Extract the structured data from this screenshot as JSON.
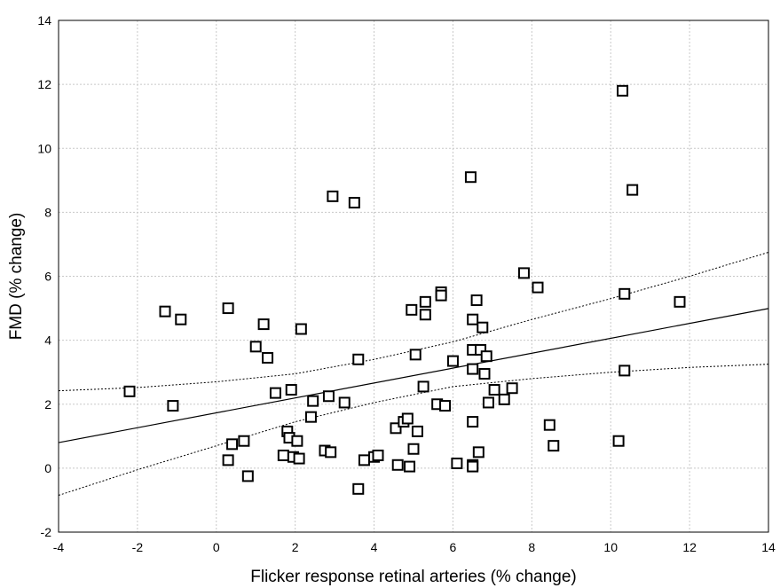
{
  "chart_data": {
    "type": "scatter",
    "title": "",
    "xlabel": "Flicker response retinal arteries (% change)",
    "ylabel": "FMD (% change)",
    "xlim": [
      -4,
      14
    ],
    "ylim": [
      -2,
      14
    ],
    "xticks": [
      "-4",
      "-2",
      "0",
      "2",
      "4",
      "6",
      "8",
      "10",
      "12",
      "14"
    ],
    "yticks": [
      "-2",
      "0",
      "2",
      "4",
      "6",
      "8",
      "10",
      "12",
      "14"
    ],
    "grid": true,
    "marker": "square",
    "points": [
      [
        -2.2,
        2.4
      ],
      [
        -1.3,
        4.9
      ],
      [
        -0.9,
        4.65
      ],
      [
        -1.1,
        1.95
      ],
      [
        0.3,
        5.0
      ],
      [
        0.3,
        0.25
      ],
      [
        0.4,
        0.75
      ],
      [
        0.7,
        0.85
      ],
      [
        0.8,
        -0.25
      ],
      [
        1.0,
        3.8
      ],
      [
        1.2,
        4.5
      ],
      [
        1.3,
        3.45
      ],
      [
        1.5,
        2.35
      ],
      [
        1.7,
        0.4
      ],
      [
        1.8,
        1.15
      ],
      [
        1.85,
        0.95
      ],
      [
        1.9,
        2.45
      ],
      [
        1.95,
        0.35
      ],
      [
        2.05,
        0.85
      ],
      [
        2.1,
        0.3
      ],
      [
        2.15,
        4.35
      ],
      [
        2.4,
        1.6
      ],
      [
        2.45,
        2.1
      ],
      [
        2.75,
        0.55
      ],
      [
        2.85,
        2.25
      ],
      [
        2.9,
        0.5
      ],
      [
        2.95,
        8.5
      ],
      [
        3.25,
        2.05
      ],
      [
        3.5,
        8.3
      ],
      [
        3.6,
        3.4
      ],
      [
        3.6,
        -0.65
      ],
      [
        3.75,
        0.25
      ],
      [
        4.0,
        0.35
      ],
      [
        4.1,
        0.4
      ],
      [
        4.55,
        1.25
      ],
      [
        4.6,
        0.1
      ],
      [
        4.75,
        1.45
      ],
      [
        4.85,
        1.55
      ],
      [
        4.9,
        0.05
      ],
      [
        4.95,
        4.95
      ],
      [
        5.0,
        0.6
      ],
      [
        5.05,
        3.55
      ],
      [
        5.1,
        1.15
      ],
      [
        5.25,
        2.55
      ],
      [
        5.3,
        5.2
      ],
      [
        5.3,
        4.8
      ],
      [
        5.6,
        2.0
      ],
      [
        5.7,
        5.5
      ],
      [
        5.7,
        5.4
      ],
      [
        5.8,
        1.95
      ],
      [
        6.0,
        3.35
      ],
      [
        6.1,
        0.15
      ],
      [
        6.45,
        9.1
      ],
      [
        6.5,
        3.7
      ],
      [
        6.5,
        3.1
      ],
      [
        6.5,
        1.45
      ],
      [
        6.5,
        0.1
      ],
      [
        6.5,
        0.05
      ],
      [
        6.5,
        4.65
      ],
      [
        6.6,
        5.25
      ],
      [
        6.65,
        0.5
      ],
      [
        6.7,
        3.7
      ],
      [
        6.75,
        4.4
      ],
      [
        6.8,
        2.95
      ],
      [
        6.85,
        3.5
      ],
      [
        6.9,
        2.05
      ],
      [
        7.05,
        2.45
      ],
      [
        7.3,
        2.15
      ],
      [
        7.5,
        2.5
      ],
      [
        7.8,
        6.1
      ],
      [
        8.15,
        5.65
      ],
      [
        8.45,
        1.35
      ],
      [
        8.55,
        0.7
      ],
      [
        10.2,
        0.85
      ],
      [
        10.3,
        11.8
      ],
      [
        10.35,
        5.45
      ],
      [
        10.35,
        3.05
      ],
      [
        10.55,
        8.7
      ],
      [
        11.75,
        5.2
      ]
    ],
    "regression": {
      "slope": 0.233,
      "intercept": 1.73
    },
    "confidence_band": {
      "x": [
        -4,
        -2,
        0,
        2,
        4,
        6,
        8,
        10,
        12,
        14
      ],
      "lower": [
        -0.85,
        -0.05,
        0.7,
        1.45,
        2.05,
        2.55,
        2.8,
        3.0,
        3.15,
        3.25
      ],
      "upper": [
        2.42,
        2.52,
        2.7,
        2.95,
        3.4,
        3.95,
        4.65,
        5.3,
        6.0,
        6.75
      ]
    }
  }
}
